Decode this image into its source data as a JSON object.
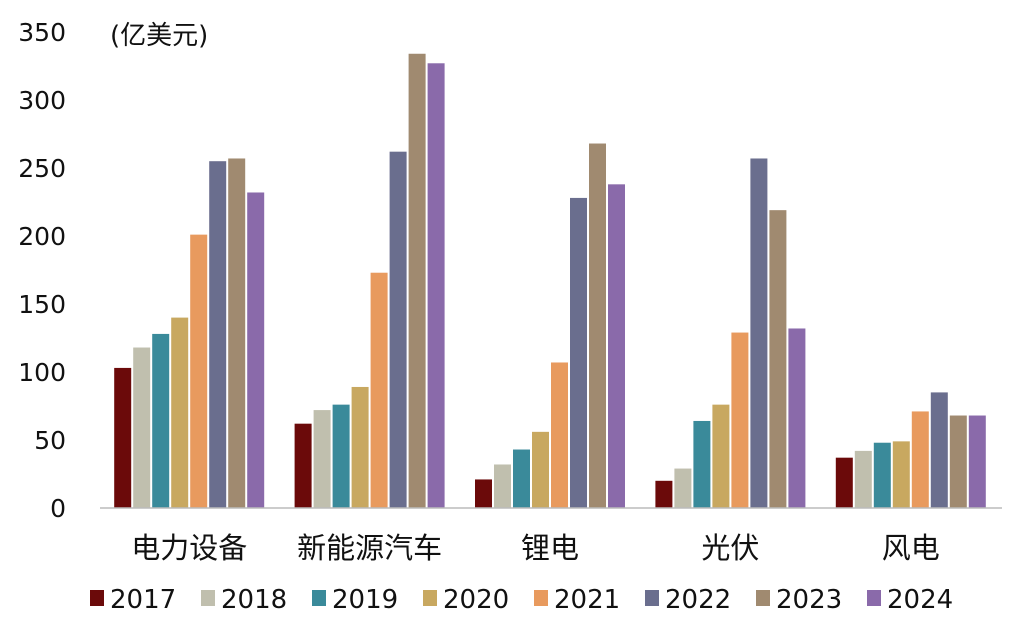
{
  "chart_data": {
    "type": "bar",
    "title": "",
    "unit_label": "(亿美元)",
    "xlabel": "",
    "ylabel": "",
    "ylim": [
      0,
      350
    ],
    "yticks": [
      0,
      50,
      100,
      150,
      200,
      250,
      300,
      350
    ],
    "grid": false,
    "legend_position": "bottom",
    "categories": [
      "电力设备",
      "新能源汽车",
      "锂电",
      "光伏",
      "风电"
    ],
    "series": [
      {
        "name": "2017",
        "color": "#6b0a0a",
        "values": [
          103,
          62,
          21,
          20,
          37
        ]
      },
      {
        "name": "2018",
        "color": "#c0bfae",
        "values": [
          118,
          72,
          32,
          29,
          42
        ]
      },
      {
        "name": "2019",
        "color": "#3a8a9a",
        "values": [
          128,
          76,
          43,
          64,
          48
        ]
      },
      {
        "name": "2020",
        "color": "#c8a860",
        "values": [
          140,
          89,
          56,
          76,
          49
        ]
      },
      {
        "name": "2021",
        "color": "#e89a5e",
        "values": [
          201,
          173,
          107,
          129,
          71
        ]
      },
      {
        "name": "2022",
        "color": "#6a6e8e",
        "values": [
          255,
          262,
          228,
          257,
          85
        ]
      },
      {
        "name": "2023",
        "color": "#a08a70",
        "values": [
          257,
          334,
          268,
          219,
          68
        ]
      },
      {
        "name": "2024",
        "color": "#8a6aaa",
        "values": [
          232,
          327,
          238,
          132,
          68
        ]
      }
    ]
  }
}
